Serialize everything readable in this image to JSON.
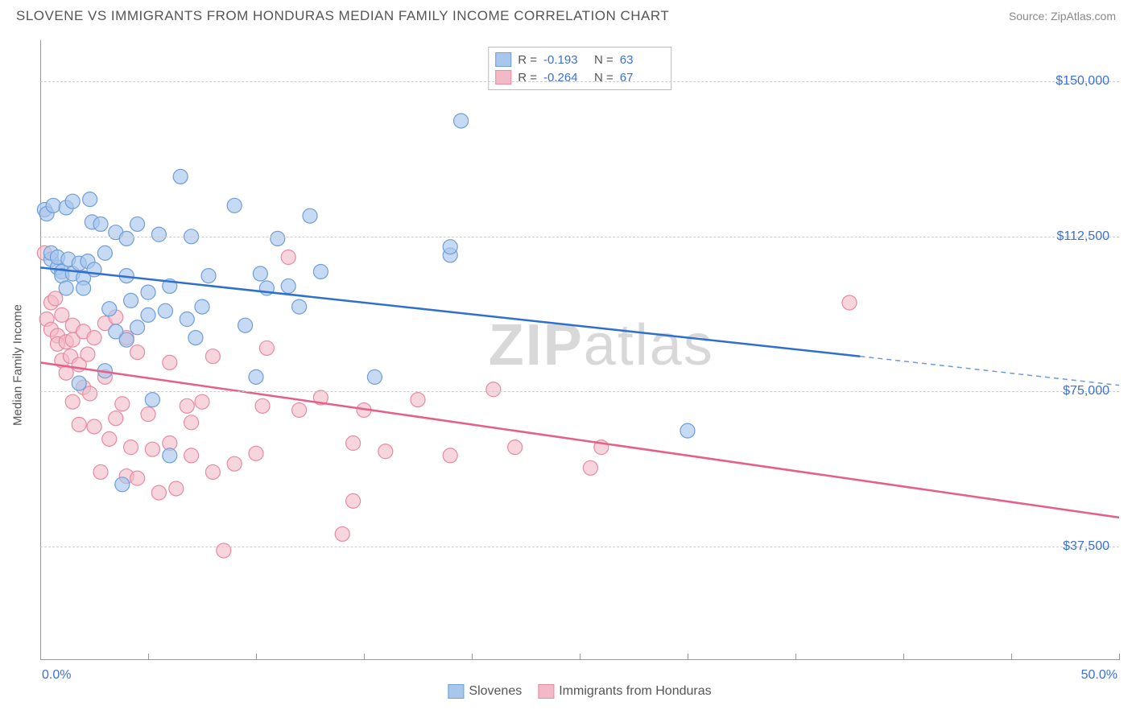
{
  "header": {
    "title": "SLOVENE VS IMMIGRANTS FROM HONDURAS MEDIAN FAMILY INCOME CORRELATION CHART",
    "source": "Source: ZipAtlas.com"
  },
  "chart": {
    "type": "scatter",
    "y_label": "Median Family Income",
    "watermark": "ZIPatlas",
    "background_color": "#ffffff",
    "grid_color": "#cccccc",
    "axis_label_color": "#3b6fd4",
    "text_color": "#555555",
    "xlim": [
      0,
      50
    ],
    "ylim": [
      10000,
      160000
    ],
    "x_ticks": [
      0,
      5,
      10,
      15,
      20,
      25,
      30,
      35,
      40,
      45,
      50
    ],
    "x_tick_labels": {
      "0": "0.0%",
      "50": "50.0%"
    },
    "y_ticks": [
      37500,
      75000,
      112500,
      150000
    ],
    "y_tick_labels": [
      "$37,500",
      "$75,000",
      "$112,500",
      "$150,000"
    ],
    "series": [
      {
        "name": "Slovenes",
        "color_fill": "#a9c6ec",
        "color_stroke": "#6f9ed8",
        "line_color": "#2f6fd0",
        "marker_radius": 9,
        "marker_opacity": 0.65,
        "R": "-0.193",
        "N": "63",
        "regression": {
          "x1": 0,
          "y1": 105000,
          "x2": 38,
          "y2": 83500,
          "style": "solid"
        },
        "regression_ext": {
          "x1": 38,
          "y1": 83500,
          "x2": 50,
          "y2": 76500,
          "style": "dashed"
        },
        "points": [
          [
            0.2,
            119000
          ],
          [
            0.3,
            118000
          ],
          [
            0.5,
            107000
          ],
          [
            0.5,
            108500
          ],
          [
            0.6,
            120000
          ],
          [
            0.8,
            105000
          ],
          [
            0.8,
            107500
          ],
          [
            1.0,
            104000
          ],
          [
            1.0,
            103000
          ],
          [
            1.2,
            119500
          ],
          [
            1.2,
            100000
          ],
          [
            1.3,
            107000
          ],
          [
            1.5,
            121000
          ],
          [
            1.5,
            103500
          ],
          [
            1.8,
            106000
          ],
          [
            1.8,
            77000
          ],
          [
            2.0,
            102500
          ],
          [
            2.0,
            100000
          ],
          [
            2.2,
            106500
          ],
          [
            2.3,
            121500
          ],
          [
            2.4,
            116000
          ],
          [
            2.5,
            104500
          ],
          [
            2.8,
            115500
          ],
          [
            3.0,
            108500
          ],
          [
            3.0,
            80000
          ],
          [
            3.2,
            95000
          ],
          [
            3.5,
            113500
          ],
          [
            3.5,
            89500
          ],
          [
            3.8,
            52500
          ],
          [
            4.0,
            112000
          ],
          [
            4.0,
            103000
          ],
          [
            4.0,
            87500
          ],
          [
            4.2,
            97000
          ],
          [
            4.5,
            115500
          ],
          [
            4.5,
            90500
          ],
          [
            5.0,
            99000
          ],
          [
            5.0,
            93500
          ],
          [
            5.2,
            73000
          ],
          [
            5.5,
            113000
          ],
          [
            5.8,
            94500
          ],
          [
            6.0,
            59500
          ],
          [
            6.0,
            100500
          ],
          [
            6.5,
            127000
          ],
          [
            6.8,
            92500
          ],
          [
            7.0,
            112500
          ],
          [
            7.2,
            88000
          ],
          [
            7.5,
            95500
          ],
          [
            7.8,
            103000
          ],
          [
            9.0,
            120000
          ],
          [
            9.5,
            91000
          ],
          [
            10.0,
            78500
          ],
          [
            10.2,
            103500
          ],
          [
            10.5,
            100000
          ],
          [
            11.0,
            112000
          ],
          [
            11.5,
            100500
          ],
          [
            12.0,
            95500
          ],
          [
            12.5,
            117500
          ],
          [
            13.0,
            104000
          ],
          [
            15.5,
            78500
          ],
          [
            19.0,
            108000
          ],
          [
            19.0,
            110000
          ],
          [
            19.5,
            140500
          ],
          [
            30.0,
            65500
          ]
        ]
      },
      {
        "name": "Immigrants from Honduras",
        "color_fill": "#f2b9c6",
        "color_stroke": "#e88aa0",
        "line_color": "#e55f86",
        "marker_radius": 9,
        "marker_opacity": 0.6,
        "R": "-0.264",
        "N": "67",
        "regression": {
          "x1": 0,
          "y1": 82000,
          "x2": 50,
          "y2": 44500,
          "style": "solid"
        },
        "points": [
          [
            0.2,
            108500
          ],
          [
            0.3,
            92500
          ],
          [
            0.5,
            96500
          ],
          [
            0.5,
            90000
          ],
          [
            0.7,
            97500
          ],
          [
            0.8,
            88500
          ],
          [
            0.8,
            86500
          ],
          [
            1.0,
            93500
          ],
          [
            1.0,
            82500
          ],
          [
            1.2,
            87000
          ],
          [
            1.2,
            79500
          ],
          [
            1.4,
            83500
          ],
          [
            1.5,
            91000
          ],
          [
            1.5,
            72500
          ],
          [
            1.5,
            87500
          ],
          [
            1.8,
            81500
          ],
          [
            1.8,
            67000
          ],
          [
            2.0,
            89500
          ],
          [
            2.0,
            76000
          ],
          [
            2.2,
            84000
          ],
          [
            2.3,
            74500
          ],
          [
            2.5,
            88000
          ],
          [
            2.5,
            66500
          ],
          [
            2.8,
            55500
          ],
          [
            3.0,
            91500
          ],
          [
            3.0,
            78500
          ],
          [
            3.2,
            63500
          ],
          [
            3.5,
            93000
          ],
          [
            3.5,
            68500
          ],
          [
            3.8,
            72000
          ],
          [
            4.0,
            54500
          ],
          [
            4.0,
            88000
          ],
          [
            4.2,
            61500
          ],
          [
            4.5,
            84500
          ],
          [
            4.5,
            54000
          ],
          [
            5.0,
            69500
          ],
          [
            5.2,
            61000
          ],
          [
            5.5,
            50500
          ],
          [
            6.0,
            82000
          ],
          [
            6.0,
            62500
          ],
          [
            6.3,
            51500
          ],
          [
            6.8,
            71500
          ],
          [
            7.0,
            59500
          ],
          [
            7.0,
            67500
          ],
          [
            7.5,
            72500
          ],
          [
            8.0,
            55500
          ],
          [
            8.0,
            83500
          ],
          [
            8.5,
            36500
          ],
          [
            9.0,
            57500
          ],
          [
            10.0,
            60000
          ],
          [
            10.3,
            71500
          ],
          [
            10.5,
            85500
          ],
          [
            11.5,
            107500
          ],
          [
            12.0,
            70500
          ],
          [
            13.0,
            73500
          ],
          [
            14.0,
            40500
          ],
          [
            14.5,
            62500
          ],
          [
            14.5,
            48500
          ],
          [
            15.0,
            70500
          ],
          [
            16.0,
            60500
          ],
          [
            17.5,
            73000
          ],
          [
            19.0,
            59500
          ],
          [
            21.0,
            75500
          ],
          [
            22.0,
            61500
          ],
          [
            25.5,
            56500
          ],
          [
            26.0,
            61500
          ],
          [
            37.5,
            96500
          ]
        ]
      }
    ]
  },
  "legend": {
    "items": [
      {
        "label": "Slovenes",
        "fill": "#a9c6ec",
        "stroke": "#6f9ed8"
      },
      {
        "label": "Immigrants from Honduras",
        "fill": "#f2b9c6",
        "stroke": "#e88aa0"
      }
    ]
  }
}
